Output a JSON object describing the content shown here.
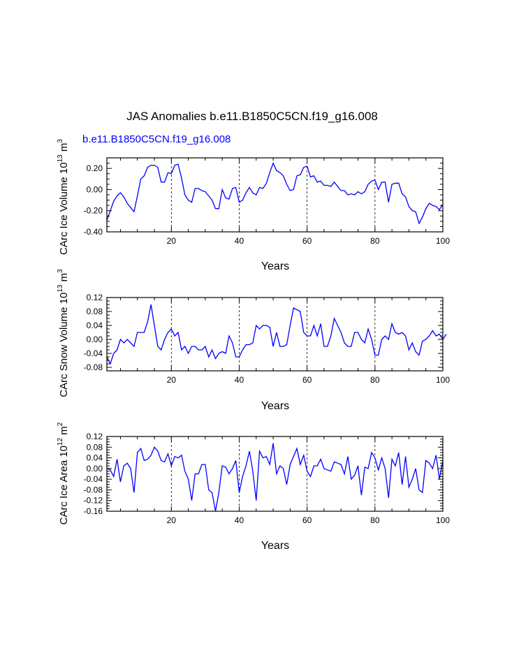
{
  "title": "JAS Anomalies b.e11.B1850C5CN.f19_g16.008",
  "case_label": "b.e11.B1850C5CN.f19_g16.008",
  "colors": {
    "series": "#0000ff",
    "axes": "#000000"
  },
  "chart_data": [
    {
      "type": "line",
      "ylabel_text": "CArc Ice Volume 10",
      "ylabel_exp": "13",
      "ylabel_unit": " m",
      "ylabel_unit_exp": "3",
      "xlabel": "Years",
      "xlim": [
        1,
        100
      ],
      "ylim": [
        -0.4,
        0.3
      ],
      "yticks": [
        -0.4,
        -0.2,
        0.0,
        0.2
      ],
      "ytick_labels": [
        "-0.40",
        "-0.20",
        "0.00",
        "0.20"
      ],
      "xticks": [
        20,
        40,
        60,
        80,
        100
      ],
      "xtick_labels": [
        "20",
        "40",
        "60",
        "80",
        "100"
      ],
      "vlines": [
        20,
        40,
        60,
        80
      ],
      "values": [
        -0.29,
        -0.2,
        -0.11,
        -0.06,
        -0.03,
        -0.07,
        -0.13,
        -0.17,
        -0.21,
        -0.06,
        0.1,
        0.13,
        0.21,
        0.23,
        0.23,
        0.21,
        0.07,
        0.07,
        0.16,
        0.15,
        0.23,
        0.24,
        0.11,
        -0.05,
        -0.1,
        -0.12,
        0.01,
        0.01,
        -0.01,
        -0.02,
        -0.06,
        -0.1,
        -0.18,
        -0.18,
        0.0,
        -0.08,
        -0.09,
        0.01,
        0.02,
        -0.12,
        -0.1,
        -0.03,
        0.02,
        -0.03,
        -0.05,
        0.02,
        0.01,
        0.06,
        0.16,
        0.25,
        0.18,
        0.16,
        0.13,
        0.05,
        -0.01,
        0.0,
        0.13,
        0.14,
        0.21,
        0.22,
        0.12,
        0.13,
        0.07,
        0.08,
        0.04,
        0.04,
        0.03,
        0.07,
        0.03,
        -0.01,
        -0.01,
        -0.05,
        -0.04,
        -0.05,
        -0.02,
        -0.04,
        -0.02,
        0.05,
        0.08,
        0.09,
        0.0,
        0.07,
        0.07,
        -0.12,
        0.05,
        0.06,
        0.06,
        -0.04,
        -0.07,
        -0.16,
        -0.2,
        -0.21,
        -0.32,
        -0.26,
        -0.18,
        -0.13,
        -0.15,
        -0.16,
        -0.19,
        -0.14
      ]
    },
    {
      "type": "line",
      "ylabel_text": "CArc Snow Volume 10",
      "ylabel_exp": "13",
      "ylabel_unit": " m",
      "ylabel_unit_exp": "3",
      "xlabel": "Years",
      "xlim": [
        1,
        100
      ],
      "ylim": [
        -0.09,
        0.12
      ],
      "yticks": [
        -0.08,
        -0.04,
        0.0,
        0.04,
        0.08,
        0.12
      ],
      "ytick_labels": [
        "-0.08",
        "-0.04",
        "0.00",
        "0.04",
        "0.08",
        "0.12"
      ],
      "xticks": [
        20,
        40,
        60,
        80,
        100
      ],
      "xtick_labels": [
        "20",
        "40",
        "60",
        "80",
        "100"
      ],
      "vlines": [
        20,
        40,
        60,
        80
      ],
      "values": [
        -0.05,
        -0.07,
        -0.04,
        -0.03,
        0.0,
        -0.01,
        0.0,
        -0.01,
        -0.02,
        0.02,
        0.02,
        0.02,
        0.05,
        0.1,
        0.04,
        -0.02,
        -0.03,
        0.0,
        0.02,
        0.03,
        0.01,
        0.02,
        -0.03,
        -0.02,
        -0.04,
        -0.02,
        -0.02,
        -0.03,
        -0.03,
        -0.02,
        -0.05,
        -0.03,
        -0.055,
        -0.04,
        -0.035,
        -0.04,
        0.01,
        -0.01,
        -0.05,
        -0.05,
        -0.03,
        -0.015,
        -0.015,
        -0.01,
        0.04,
        0.03,
        0.04,
        0.04,
        0.035,
        -0.02,
        0.02,
        -0.02,
        -0.02,
        -0.015,
        0.04,
        0.09,
        0.085,
        0.08,
        0.02,
        0.01,
        0.01,
        0.04,
        0.01,
        0.045,
        -0.02,
        -0.02,
        0.01,
        0.06,
        0.04,
        0.02,
        -0.01,
        -0.02,
        -0.02,
        0.02,
        0.02,
        0.0,
        -0.01,
        0.03,
        0.0,
        -0.045,
        -0.045,
        0.0,
        0.01,
        0.0,
        0.045,
        0.02,
        0.015,
        0.02,
        0.01,
        -0.03,
        -0.01,
        -0.035,
        -0.045,
        -0.005,
        0.0,
        0.01,
        0.025,
        0.01,
        0.015,
        0.0,
        0.015
      ]
    },
    {
      "type": "line",
      "ylabel_text": "CArc Ice Area 10",
      "ylabel_exp": "12",
      "ylabel_unit": " m",
      "ylabel_unit_exp": "2",
      "xlabel": "Years",
      "xlim": [
        1,
        100
      ],
      "ylim": [
        -0.16,
        0.12
      ],
      "yticks": [
        -0.16,
        -0.12,
        -0.08,
        -0.04,
        0.0,
        0.04,
        0.08,
        0.12
      ],
      "ytick_labels": [
        "-0.16",
        "-0.12",
        "-0.08",
        "-0.04",
        "0.00",
        "0.04",
        "0.08",
        "0.12"
      ],
      "xticks": [
        20,
        40,
        60,
        80,
        100
      ],
      "xtick_labels": [
        "20",
        "40",
        "60",
        "80",
        "100"
      ],
      "vlines": [
        20,
        40,
        60,
        80
      ],
      "values": [
        0.0,
        -0.005,
        -0.03,
        0.035,
        -0.05,
        0.01,
        0.02,
        0.0,
        -0.09,
        0.06,
        0.075,
        0.03,
        0.035,
        0.05,
        0.08,
        0.065,
        0.03,
        0.025,
        0.055,
        0.01,
        0.045,
        0.04,
        0.05,
        -0.01,
        -0.04,
        -0.12,
        -0.02,
        -0.02,
        0.015,
        0.015,
        -0.08,
        -0.09,
        -0.16,
        -0.09,
        0.01,
        0.005,
        -0.02,
        0.0,
        0.03,
        -0.09,
        -0.03,
        0.01,
        0.065,
        -0.01,
        -0.12,
        0.065,
        0.04,
        0.045,
        0.015,
        0.095,
        -0.02,
        0.01,
        0.0,
        -0.06,
        0.015,
        0.045,
        0.075,
        0.015,
        0.05,
        -0.01,
        -0.03,
        0.01,
        0.01,
        0.035,
        0.0,
        -0.005,
        -0.01,
        0.025,
        0.02,
        0.015,
        -0.02,
        0.045,
        -0.04,
        -0.025,
        0.01,
        -0.1,
        0.005,
        0.0,
        0.06,
        0.04,
        -0.005,
        0.04,
        0.0,
        -0.11,
        0.035,
        0.01,
        0.06,
        -0.06,
        0.045,
        -0.07,
        -0.04,
        0.0,
        -0.08,
        -0.09,
        0.03,
        0.02,
        0.0,
        0.05,
        -0.04,
        0.03
      ]
    }
  ]
}
